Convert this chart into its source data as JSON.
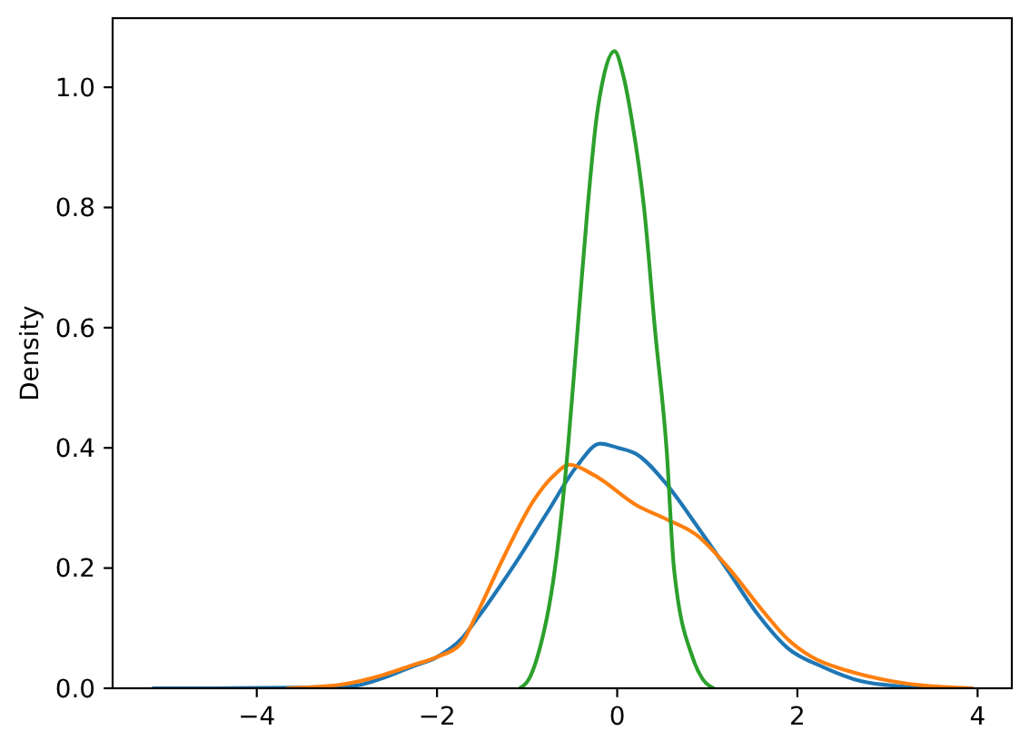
{
  "chart_data": {
    "type": "line",
    "ylabel": "Density",
    "xlim": [
      -5.6,
      4.38
    ],
    "ylim": [
      0,
      1.115
    ],
    "xticks": [
      {
        "value": -4,
        "label": "−4"
      },
      {
        "value": -2,
        "label": "−2"
      },
      0,
      2,
      4
    ],
    "yticks": [
      {
        "value": 0,
        "label": "0.0"
      },
      0.2,
      0.4,
      0.6,
      0.8,
      {
        "value": 1,
        "label": "1.0"
      }
    ],
    "series": [
      {
        "color": "#1f77b4",
        "x": [
          -5.15,
          -4.5,
          -3.6,
          -2.93,
          -2.6,
          -2.26,
          -2.0,
          -1.73,
          -1.52,
          -1.3,
          -1.13,
          -0.79,
          -0.45,
          -0.19,
          0.01,
          0.22,
          0.55,
          0.89,
          1.22,
          1.56,
          1.89,
          2.29,
          2.7,
          3.17,
          3.49
        ],
        "values": [
          0,
          0,
          0.001,
          0.004,
          0.017,
          0.037,
          0.052,
          0.082,
          0.123,
          0.17,
          0.208,
          0.289,
          0.369,
          0.407,
          0.4,
          0.389,
          0.339,
          0.269,
          0.198,
          0.123,
          0.067,
          0.035,
          0.012,
          0.003,
          0
        ]
      },
      {
        "color": "#ff7f0e",
        "x": [
          -3.66,
          -3.07,
          -2.6,
          -2.26,
          -2.0,
          -1.73,
          -1.56,
          -1.26,
          -0.92,
          -0.71,
          -0.53,
          -0.25,
          0.22,
          0.55,
          0.89,
          1.22,
          1.62,
          1.89,
          2.16,
          2.56,
          2.97,
          3.37,
          3.94
        ],
        "values": [
          0,
          0.006,
          0.022,
          0.039,
          0.052,
          0.075,
          0.123,
          0.218,
          0.314,
          0.353,
          0.372,
          0.354,
          0.304,
          0.281,
          0.254,
          0.203,
          0.128,
          0.082,
          0.052,
          0.029,
          0.014,
          0.005,
          0
        ]
      },
      {
        "color": "#2ca02c",
        "x": [
          -1.08,
          -0.98,
          -0.89,
          -0.69,
          -0.55,
          -0.44,
          -0.33,
          -0.23,
          -0.15,
          -0.03,
          0.07,
          0.16,
          0.3,
          0.42,
          0.55,
          0.63,
          0.84,
          0.95,
          1.07
        ],
        "values": [
          0,
          0.015,
          0.05,
          0.2,
          0.394,
          0.596,
          0.797,
          0.948,
          1.018,
          1.06,
          1.018,
          0.948,
          0.797,
          0.596,
          0.394,
          0.2,
          0.05,
          0.015,
          0
        ]
      }
    ]
  }
}
